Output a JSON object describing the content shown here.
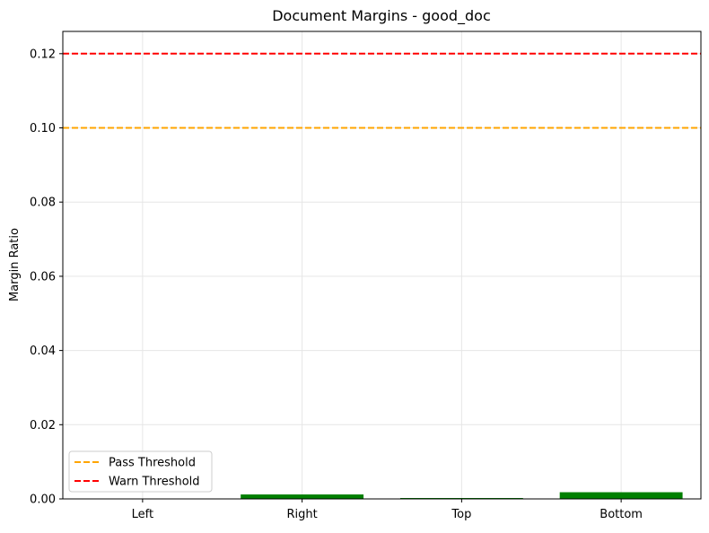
{
  "chart_data": {
    "type": "bar",
    "title": "Document Margins - good_doc",
    "xlabel": "",
    "ylabel": "Margin Ratio",
    "categories": [
      "Left",
      "Right",
      "Top",
      "Bottom"
    ],
    "values": [
      0.0,
      0.0012,
      0.0001,
      0.0018
    ],
    "bar_color": "#008000",
    "ylim": [
      0,
      0.126
    ],
    "yticks": [
      0.0,
      0.02,
      0.04,
      0.06,
      0.08,
      0.1,
      0.12
    ],
    "ytick_labels": [
      "0.00",
      "0.02",
      "0.04",
      "0.06",
      "0.08",
      "0.10",
      "0.12"
    ],
    "grid": true,
    "threshold_lines": [
      {
        "name": "Pass Threshold",
        "value": 0.1,
        "color": "#ffa500",
        "style": "dashed"
      },
      {
        "name": "Warn Threshold",
        "value": 0.12,
        "color": "#ff0000",
        "style": "dashed"
      }
    ],
    "legend_position": "lower-left"
  }
}
